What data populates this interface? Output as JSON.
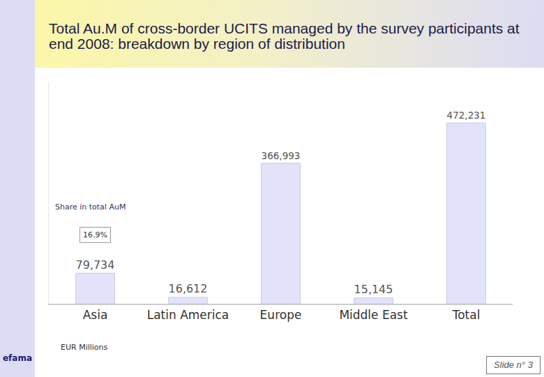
{
  "chart_data": {
    "type": "bar",
    "title": "Total Au.M of cross-border UCITS managed by the survey participants at end 2008: breakdown by region of distribution",
    "categories": [
      "Asia",
      "Latin America",
      "Europe",
      "Middle East",
      "Total"
    ],
    "values": [
      79734,
      16612,
      366993,
      15145,
      472231
    ],
    "value_labels": [
      "79,734",
      "16,612",
      "366,993",
      "15,145",
      "472,231"
    ],
    "color": "#e2e2fa",
    "ylim": [
      0,
      580000
    ],
    "grid": false,
    "data_labels": true,
    "tick_labels": "x",
    "unit_label": "EUR Millions",
    "annotations": [
      {
        "text": "Share in total AuM"
      },
      {
        "text": "16.9%",
        "category": "Asia"
      }
    ]
  },
  "slide": {
    "number": "Slide n° 3",
    "logo": "efama"
  }
}
